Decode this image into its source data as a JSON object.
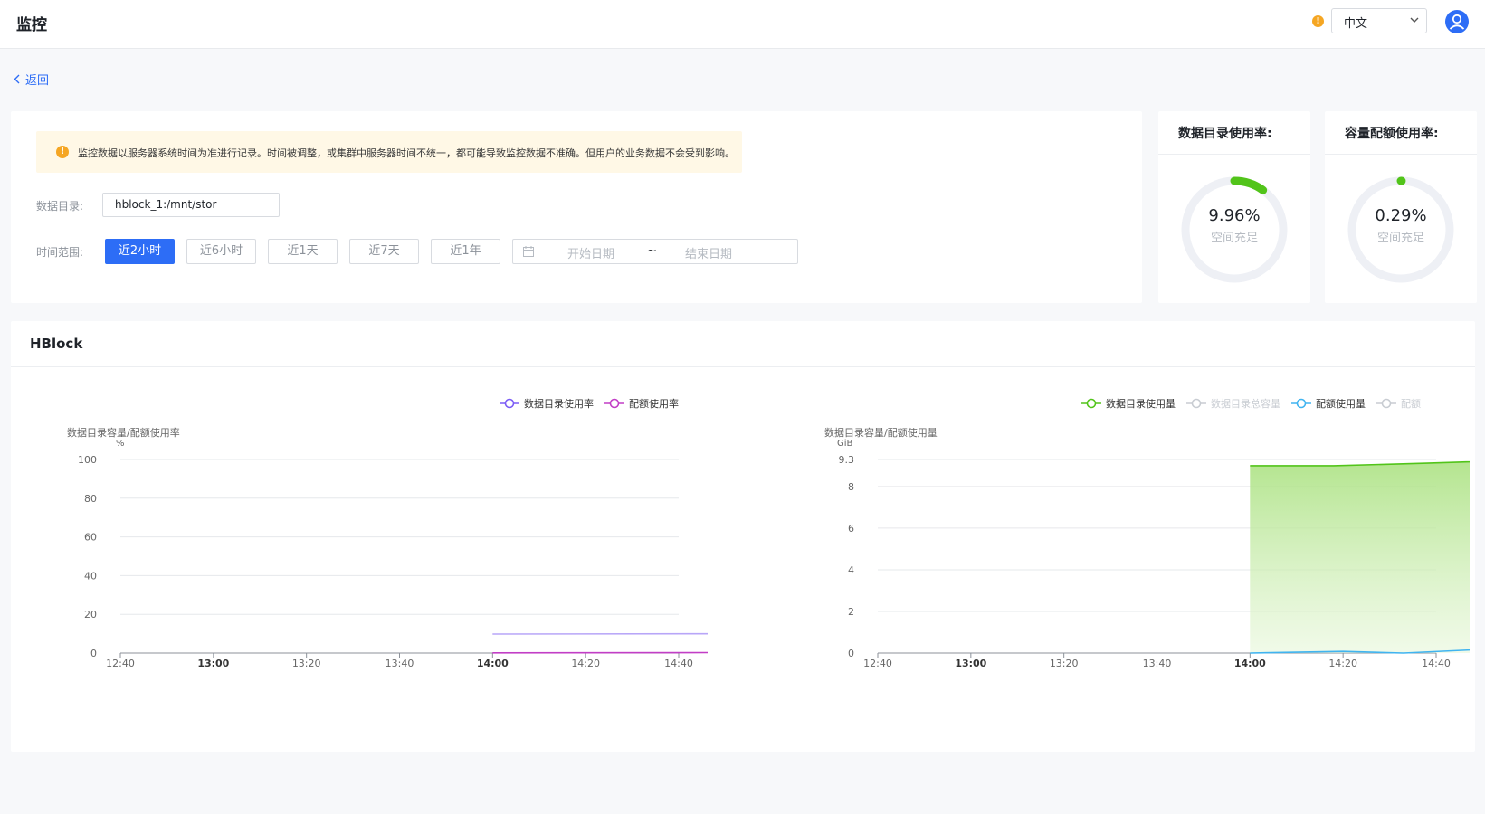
{
  "header": {
    "title": "监控",
    "warn_icon": "exclamation-icon",
    "language": "中文",
    "avatar_icon": "user-icon"
  },
  "back": {
    "label": "返回"
  },
  "alert": {
    "text": "监控数据以服务器系统时间为准进行记录。时间被调整，或集群中服务器时间不统一，都可能导致监控数据不准确。但用户的业务数据不会受到影响。"
  },
  "filters": {
    "dir_label": "数据目录:",
    "dir_value": "hblock_1:/mnt/stor",
    "range_label": "时间范围:",
    "ranges": [
      "近2小时",
      "近6小时",
      "近1天",
      "近7天",
      "近1年"
    ],
    "active_range": 0,
    "date_start_placeholder": "开始日期",
    "date_sep": "~",
    "date_end_placeholder": "结束日期"
  },
  "gauges": [
    {
      "title": "数据目录使用率:",
      "value": 9.96,
      "label": "9.96%",
      "status": "空间充足",
      "color": "#52c41a"
    },
    {
      "title": "容量配额使用率:",
      "value": 0.29,
      "label": "0.29%",
      "status": "空间充足",
      "color": "#52c41a"
    }
  ],
  "section": {
    "title": "HBlock"
  },
  "chart_data": [
    {
      "type": "line",
      "title": "数据目录容量/配额使用率",
      "ylabel": "%",
      "ylim": [
        0,
        100
      ],
      "yticks": [
        "100",
        "80",
        "60",
        "40",
        "20",
        "0"
      ],
      "xticks": [
        {
          "label": "12:40",
          "bold": false
        },
        {
          "label": "13:00",
          "bold": true
        },
        {
          "label": "13:20",
          "bold": false
        },
        {
          "label": "13:40",
          "bold": false
        },
        {
          "label": "14:00",
          "bold": true
        },
        {
          "label": "14:20",
          "bold": false
        },
        {
          "label": "14:40",
          "bold": false
        }
      ],
      "legend": "top-right",
      "series": [
        {
          "name": "数据目录使用率",
          "color": "#7b5cf5",
          "line_color": "#b8a6f8",
          "x": [
            14.0,
            14.6
          ],
          "y": [
            9.8,
            10.0
          ]
        },
        {
          "name": "配额使用率",
          "color": "#c23ec6",
          "line_color": "#c23ec6",
          "x": [
            14.0,
            14.6
          ],
          "y": [
            0.1,
            0.3
          ]
        }
      ]
    },
    {
      "type": "area",
      "title": "数据目录容量/配额使用量",
      "ylabel": "GiB",
      "ylim": [
        0,
        9.3
      ],
      "yticks": [
        "9.3",
        "8",
        "6",
        "4",
        "2",
        "0"
      ],
      "xticks": [
        {
          "label": "12:40",
          "bold": false
        },
        {
          "label": "13:00",
          "bold": true
        },
        {
          "label": "13:20",
          "bold": false
        },
        {
          "label": "13:40",
          "bold": false
        },
        {
          "label": "14:00",
          "bold": true
        },
        {
          "label": "14:20",
          "bold": false
        },
        {
          "label": "14:40",
          "bold": false
        }
      ],
      "legend": "top-right",
      "series": [
        {
          "name": "数据目录使用量",
          "color": "#52c41a",
          "active": true,
          "x": [
            14.0,
            14.18,
            14.38,
            14.6
          ],
          "y": [
            9.0,
            9.0,
            9.12,
            9.28
          ]
        },
        {
          "name": "数据目录总容量",
          "color": "#c8ccd2",
          "active": false
        },
        {
          "name": "配额使用量",
          "color": "#40b4f0",
          "active": true,
          "x": [
            14.0,
            14.2,
            14.33,
            14.6
          ],
          "y": [
            0.0,
            0.08,
            0.0,
            0.28
          ]
        },
        {
          "name": "配额",
          "color": "#c8ccd2",
          "active": false
        }
      ]
    }
  ]
}
